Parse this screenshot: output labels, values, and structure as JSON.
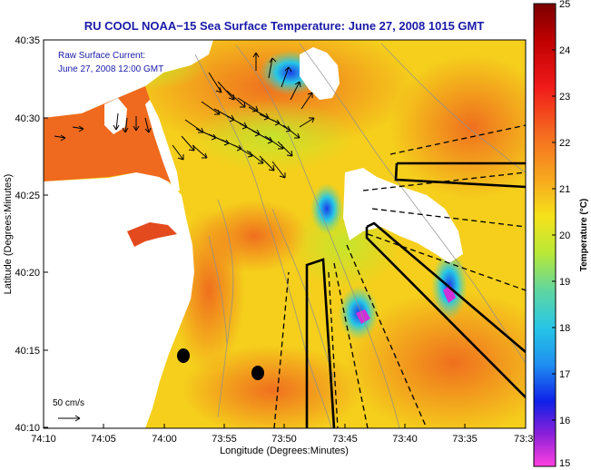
{
  "title": "RU COOL   NOAA−15  Sea Surface Temperature:  June 27, 2008 1015 GMT",
  "annotation_line1": "Raw Surface Current:",
  "annotation_line2": "June 27, 2008 12:00 GMT",
  "scale_label": "50 cm/s",
  "y_ticks": [
    "40:35",
    "40:30",
    "40:25",
    "40:20",
    "40:15",
    "40:10"
  ],
  "x_ticks": [
    "74:10",
    "74:05",
    "74:00",
    "73:55",
    "73:50",
    "73:45",
    "73:40",
    "73:35",
    "73:3"
  ],
  "x_label": "Longitude (Degrees:Minutes)",
  "y_label": "Latitude (Degrees:Minutes)",
  "colorbar": {
    "label": "Temperature (°C)",
    "ticks": [
      "25",
      "24",
      "23",
      "22",
      "21",
      "20",
      "19",
      "18",
      "17",
      "16",
      "15"
    ],
    "min": 15,
    "max": 25
  },
  "colors": {
    "water_warm": "#f7d21c",
    "water_hot": "#ef7a1e",
    "land": "#ffffff",
    "cloud": "#ffffff",
    "title_blue": "#1a1aa8"
  }
}
